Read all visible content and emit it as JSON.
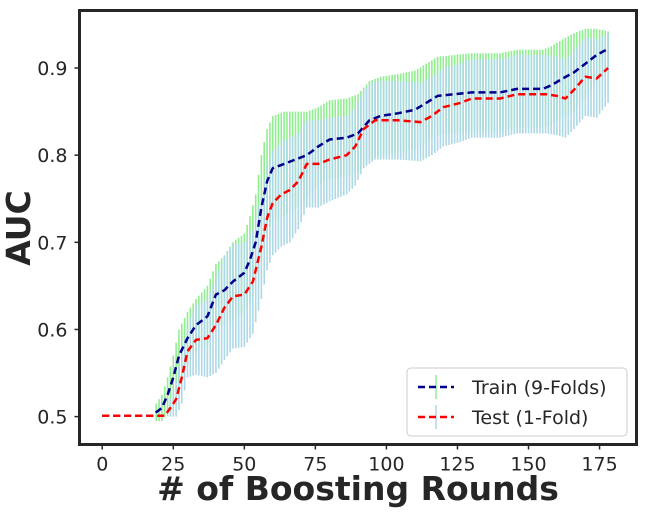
{
  "chart_data": {
    "type": "line",
    "title": "",
    "xlabel": "# of Boosting Rounds",
    "ylabel": "AUC",
    "xlim": [
      -8,
      188
    ],
    "ylim": [
      0.468,
      0.966
    ],
    "xticks": [
      0,
      25,
      50,
      75,
      100,
      125,
      150,
      175
    ],
    "yticks": [
      0.5,
      0.6,
      0.7,
      0.8,
      0.9
    ],
    "ytick_labels": [
      "0.5",
      "0.6",
      "0.7",
      "0.8",
      "0.9"
    ],
    "grid": false,
    "legend_position": "bottom-right",
    "series": [
      {
        "name": "Train (9-Folds)",
        "color": "#00008b",
        "errorbar_color": "#90ee90",
        "linestyle": "dashed",
        "points": [
          [
            0,
            0.501
          ],
          [
            18,
            0.501
          ],
          [
            19,
            0.505
          ],
          [
            21,
            0.51
          ],
          [
            23,
            0.525
          ],
          [
            25,
            0.545
          ],
          [
            27,
            0.57
          ],
          [
            30,
            0.59
          ],
          [
            33,
            0.605
          ],
          [
            37,
            0.615
          ],
          [
            40,
            0.64
          ],
          [
            43,
            0.645
          ],
          [
            46,
            0.655
          ],
          [
            50,
            0.665
          ],
          [
            52,
            0.68
          ],
          [
            54,
            0.7
          ],
          [
            56,
            0.74
          ],
          [
            58,
            0.77
          ],
          [
            60,
            0.785
          ],
          [
            64,
            0.79
          ],
          [
            68,
            0.795
          ],
          [
            72,
            0.8
          ],
          [
            76,
            0.81
          ],
          [
            80,
            0.818
          ],
          [
            86,
            0.82
          ],
          [
            90,
            0.825
          ],
          [
            94,
            0.84
          ],
          [
            98,
            0.845
          ],
          [
            104,
            0.848
          ],
          [
            110,
            0.852
          ],
          [
            114,
            0.86
          ],
          [
            118,
            0.868
          ],
          [
            124,
            0.87
          ],
          [
            130,
            0.872
          ],
          [
            140,
            0.872
          ],
          [
            146,
            0.876
          ],
          [
            155,
            0.876
          ],
          [
            158,
            0.88
          ],
          [
            162,
            0.888
          ],
          [
            166,
            0.895
          ],
          [
            170,
            0.905
          ],
          [
            174,
            0.915
          ],
          [
            178,
            0.922
          ]
        ],
        "error": [
          [
            0,
            0
          ],
          [
            18,
            0
          ],
          [
            19,
            0.01
          ],
          [
            21,
            0.015
          ],
          [
            23,
            0.02
          ],
          [
            25,
            0.025
          ],
          [
            27,
            0.03
          ],
          [
            30,
            0.03
          ],
          [
            33,
            0.03
          ],
          [
            37,
            0.035
          ],
          [
            40,
            0.035
          ],
          [
            43,
            0.04
          ],
          [
            46,
            0.045
          ],
          [
            50,
            0.045
          ],
          [
            52,
            0.05
          ],
          [
            54,
            0.055
          ],
          [
            56,
            0.06
          ],
          [
            58,
            0.06
          ],
          [
            60,
            0.06
          ],
          [
            64,
            0.06
          ],
          [
            68,
            0.055
          ],
          [
            72,
            0.05
          ],
          [
            76,
            0.045
          ],
          [
            80,
            0.045
          ],
          [
            86,
            0.045
          ],
          [
            90,
            0.045
          ],
          [
            94,
            0.045
          ],
          [
            98,
            0.045
          ],
          [
            104,
            0.045
          ],
          [
            110,
            0.045
          ],
          [
            114,
            0.045
          ],
          [
            118,
            0.045
          ],
          [
            124,
            0.045
          ],
          [
            130,
            0.045
          ],
          [
            140,
            0.045
          ],
          [
            146,
            0.045
          ],
          [
            155,
            0.045
          ],
          [
            158,
            0.045
          ],
          [
            162,
            0.045
          ],
          [
            166,
            0.045
          ],
          [
            170,
            0.04
          ],
          [
            174,
            0.03
          ],
          [
            178,
            0.02
          ]
        ]
      },
      {
        "name": "Test (1-Fold)",
        "color": "#ff0000",
        "errorbar_color": "#add8e6",
        "linestyle": "dashed",
        "points": [
          [
            0,
            0.501
          ],
          [
            22,
            0.501
          ],
          [
            24,
            0.51
          ],
          [
            26,
            0.52
          ],
          [
            28,
            0.545
          ],
          [
            30,
            0.575
          ],
          [
            33,
            0.588
          ],
          [
            37,
            0.59
          ],
          [
            40,
            0.605
          ],
          [
            43,
            0.625
          ],
          [
            46,
            0.638
          ],
          [
            50,
            0.64
          ],
          [
            53,
            0.655
          ],
          [
            56,
            0.695
          ],
          [
            58,
            0.728
          ],
          [
            60,
            0.745
          ],
          [
            63,
            0.755
          ],
          [
            66,
            0.76
          ],
          [
            69,
            0.77
          ],
          [
            72,
            0.79
          ],
          [
            76,
            0.79
          ],
          [
            80,
            0.795
          ],
          [
            86,
            0.8
          ],
          [
            89,
            0.81
          ],
          [
            92,
            0.83
          ],
          [
            96,
            0.84
          ],
          [
            104,
            0.84
          ],
          [
            112,
            0.838
          ],
          [
            116,
            0.845
          ],
          [
            120,
            0.855
          ],
          [
            126,
            0.86
          ],
          [
            130,
            0.865
          ],
          [
            140,
            0.865
          ],
          [
            146,
            0.87
          ],
          [
            156,
            0.87
          ],
          [
            160,
            0.868
          ],
          [
            163,
            0.865
          ],
          [
            166,
            0.875
          ],
          [
            170,
            0.89
          ],
          [
            174,
            0.888
          ],
          [
            178,
            0.9
          ]
        ],
        "error": [
          [
            0,
            0
          ],
          [
            22,
            0
          ],
          [
            24,
            0.01
          ],
          [
            26,
            0.02
          ],
          [
            28,
            0.03
          ],
          [
            30,
            0.03
          ],
          [
            33,
            0.04
          ],
          [
            37,
            0.045
          ],
          [
            40,
            0.055
          ],
          [
            43,
            0.06
          ],
          [
            46,
            0.06
          ],
          [
            50,
            0.06
          ],
          [
            53,
            0.06
          ],
          [
            56,
            0.06
          ],
          [
            58,
            0.06
          ],
          [
            60,
            0.06
          ],
          [
            63,
            0.06
          ],
          [
            66,
            0.06
          ],
          [
            69,
            0.055
          ],
          [
            72,
            0.05
          ],
          [
            76,
            0.05
          ],
          [
            80,
            0.048
          ],
          [
            86,
            0.045
          ],
          [
            89,
            0.045
          ],
          [
            92,
            0.045
          ],
          [
            96,
            0.045
          ],
          [
            104,
            0.045
          ],
          [
            112,
            0.045
          ],
          [
            116,
            0.045
          ],
          [
            120,
            0.045
          ],
          [
            126,
            0.045
          ],
          [
            130,
            0.045
          ],
          [
            140,
            0.045
          ],
          [
            146,
            0.045
          ],
          [
            156,
            0.045
          ],
          [
            160,
            0.045
          ],
          [
            163,
            0.045
          ],
          [
            166,
            0.045
          ],
          [
            170,
            0.045
          ],
          [
            174,
            0.045
          ],
          [
            178,
            0.04
          ]
        ]
      }
    ]
  }
}
